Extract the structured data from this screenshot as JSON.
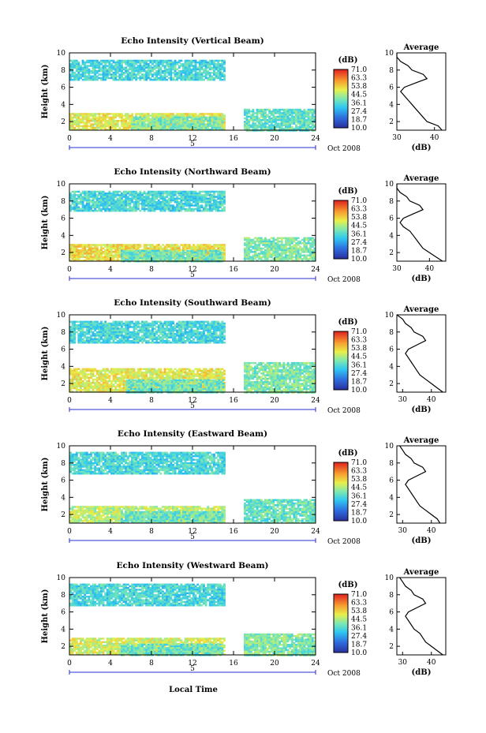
{
  "figure": {
    "x_axis_label": "Local Time",
    "date_label": "Oct 2008",
    "day_label": "5",
    "colorbar_unit": "(dB)",
    "colorbar_ticks": [
      "71.0",
      "63.3",
      "53.8",
      "44.5",
      "36.1",
      "27.4",
      "18.7",
      "10.0"
    ],
    "avg_title": "Average",
    "avg_xlabel": "(dB)"
  },
  "chart_data": [
    {
      "type": "heatmap",
      "title": "Echo Intensity (Vertical Beam)",
      "xlabel": "Local Time",
      "ylabel": "Height (km)",
      "xlim": [
        0,
        24
      ],
      "ylim": [
        1,
        10
      ],
      "xticks": [
        0,
        4,
        8,
        12,
        16,
        20,
        24
      ],
      "yticks": [
        2,
        4,
        6,
        8,
        10
      ],
      "colorbar": {
        "unit": "dB",
        "range": [
          10.0,
          71.0
        ]
      },
      "gaps": [
        [
          15,
          17
        ],
        [
          17.2,
          18
        ]
      ],
      "layers": [
        {
          "t": [
            0,
            15
          ],
          "h": [
            6.8,
            9.2
          ],
          "level": 34
        },
        {
          "t": [
            0,
            15
          ],
          "h": [
            1.0,
            3.0
          ],
          "level": 50
        },
        {
          "t": [
            6,
            15
          ],
          "h": [
            1.0,
            2.6
          ],
          "level": 40
        },
        {
          "t": [
            17,
            24
          ],
          "h": [
            1.0,
            3.5
          ],
          "level": 37
        }
      ],
      "average": {
        "xlim": [
          30,
          43
        ],
        "xticks": [
          30,
          40
        ],
        "h": [
          1,
          1.5,
          2,
          2.5,
          3,
          3.5,
          4,
          4.5,
          5,
          5.5,
          6,
          6.5,
          7,
          7.5,
          8,
          8.5,
          9,
          9.5,
          10
        ],
        "v": [
          42,
          41,
          38,
          37,
          36,
          35,
          34,
          33,
          32,
          31,
          32,
          35,
          38,
          37,
          34,
          33,
          31,
          30,
          30
        ]
      }
    },
    {
      "type": "heatmap",
      "title": "Echo Intensity (Northward Beam)",
      "xlabel": "Local Time",
      "ylabel": "Height (km)",
      "xlim": [
        0,
        24
      ],
      "ylim": [
        1,
        10
      ],
      "xticks": [
        0,
        4,
        8,
        12,
        16,
        20,
        24
      ],
      "yticks": [
        2,
        4,
        6,
        8,
        10
      ],
      "colorbar": {
        "unit": "dB",
        "range": [
          10.0,
          71.0
        ]
      },
      "layers": [
        {
          "t": [
            0,
            15
          ],
          "h": [
            6.8,
            9.2
          ],
          "level": 34
        },
        {
          "t": [
            0,
            15
          ],
          "h": [
            1.0,
            3.0
          ],
          "level": 52
        },
        {
          "t": [
            5,
            15
          ],
          "h": [
            1.0,
            2.3
          ],
          "level": 38
        },
        {
          "t": [
            17,
            24
          ],
          "h": [
            1.0,
            3.8
          ],
          "level": 40
        }
      ],
      "average": {
        "xlim": [
          30,
          45
        ],
        "xticks": [
          30,
          40
        ],
        "h": [
          1,
          1.5,
          2,
          2.5,
          3,
          3.5,
          4,
          4.5,
          5,
          5.5,
          6,
          6.5,
          7,
          7.5,
          8,
          8.5,
          9,
          9.5,
          10
        ],
        "v": [
          44,
          42,
          40,
          38,
          37,
          36,
          35,
          34,
          32,
          31,
          32,
          35,
          38,
          37,
          34,
          33,
          31,
          30,
          30
        ]
      }
    },
    {
      "type": "heatmap",
      "title": "Echo Intensity (Southward Beam)",
      "xlabel": "Local Time",
      "ylabel": "Height (km)",
      "xlim": [
        0,
        24
      ],
      "ylim": [
        1,
        10
      ],
      "xticks": [
        0,
        4,
        8,
        12,
        16,
        20,
        24
      ],
      "yticks": [
        2,
        4,
        6,
        8,
        10
      ],
      "colorbar": {
        "unit": "dB",
        "range": [
          10.0,
          71.0
        ]
      },
      "layers": [
        {
          "t": [
            0,
            15
          ],
          "h": [
            6.8,
            9.3
          ],
          "level": 34
        },
        {
          "t": [
            0,
            15
          ],
          "h": [
            1.0,
            3.8
          ],
          "level": 50
        },
        {
          "t": [
            5.5,
            15
          ],
          "h": [
            1.0,
            2.5
          ],
          "level": 38
        },
        {
          "t": [
            17,
            24
          ],
          "h": [
            1.0,
            4.5
          ],
          "level": 40
        }
      ],
      "average": {
        "xlim": [
          28,
          45
        ],
        "xticks": [
          30,
          40
        ],
        "h": [
          1,
          1.5,
          2,
          2.5,
          3,
          3.5,
          4,
          4.5,
          5,
          5.5,
          6,
          6.5,
          7,
          7.5,
          8,
          8.5,
          9,
          9.5,
          10
        ],
        "v": [
          44,
          42,
          40,
          38,
          36,
          35,
          34,
          33,
          32,
          31,
          32,
          35,
          38,
          37,
          34,
          33,
          31,
          30,
          28
        ]
      }
    },
    {
      "type": "heatmap",
      "title": "Echo Intensity (Eastward Beam)",
      "xlabel": "Local Time",
      "ylabel": "Height (km)",
      "xlim": [
        0,
        24
      ],
      "ylim": [
        1,
        10
      ],
      "xticks": [
        0,
        4,
        8,
        12,
        16,
        20,
        24
      ],
      "yticks": [
        2,
        4,
        6,
        8,
        10
      ],
      "colorbar": {
        "unit": "dB",
        "range": [
          10.0,
          71.0
        ]
      },
      "layers": [
        {
          "t": [
            0,
            15
          ],
          "h": [
            6.8,
            9.3
          ],
          "level": 34
        },
        {
          "t": [
            0,
            15
          ],
          "h": [
            1.0,
            3.0
          ],
          "level": 46
        },
        {
          "t": [
            5,
            15
          ],
          "h": [
            1.0,
            2.4
          ],
          "level": 38
        },
        {
          "t": [
            17,
            24
          ],
          "h": [
            1.0,
            3.8
          ],
          "level": 38
        }
      ],
      "average": {
        "xlim": [
          28,
          45
        ],
        "xticks": [
          30,
          40
        ],
        "h": [
          1,
          1.5,
          2,
          2.5,
          3,
          3.5,
          4,
          4.5,
          5,
          5.5,
          6,
          6.5,
          7,
          7.5,
          8,
          8.5,
          9,
          9.5,
          10
        ],
        "v": [
          43,
          42,
          40,
          38,
          36,
          35,
          34,
          33,
          32,
          31,
          32,
          35,
          38,
          37,
          34,
          33,
          31,
          30,
          29
        ]
      }
    },
    {
      "type": "heatmap",
      "title": "Echo Intensity (Westward Beam)",
      "xlabel": "Local Time",
      "ylabel": "Height (km)",
      "xlim": [
        0,
        24
      ],
      "ylim": [
        1,
        10
      ],
      "xticks": [
        0,
        4,
        8,
        12,
        16,
        20,
        24
      ],
      "yticks": [
        2,
        4,
        6,
        8,
        10
      ],
      "colorbar": {
        "unit": "dB",
        "range": [
          10.0,
          71.0
        ]
      },
      "layers": [
        {
          "t": [
            0,
            15
          ],
          "h": [
            6.8,
            9.3
          ],
          "level": 34
        },
        {
          "t": [
            0,
            15
          ],
          "h": [
            1.0,
            3.0
          ],
          "level": 48
        },
        {
          "t": [
            5,
            15
          ],
          "h": [
            1.0,
            2.3
          ],
          "level": 38
        },
        {
          "t": [
            17,
            24
          ],
          "h": [
            1.0,
            3.5
          ],
          "level": 40
        }
      ],
      "average": {
        "xlim": [
          28,
          45
        ],
        "xticks": [
          30,
          40
        ],
        "h": [
          1,
          1.5,
          2,
          2.5,
          3,
          3.5,
          4,
          4.5,
          5,
          5.5,
          6,
          6.5,
          7,
          7.5,
          8,
          8.5,
          9,
          9.5,
          10
        ],
        "v": [
          44,
          42,
          40,
          38,
          37,
          36,
          34,
          33,
          32,
          31,
          32,
          35,
          38,
          37,
          34,
          33,
          31,
          30,
          29
        ]
      }
    }
  ]
}
